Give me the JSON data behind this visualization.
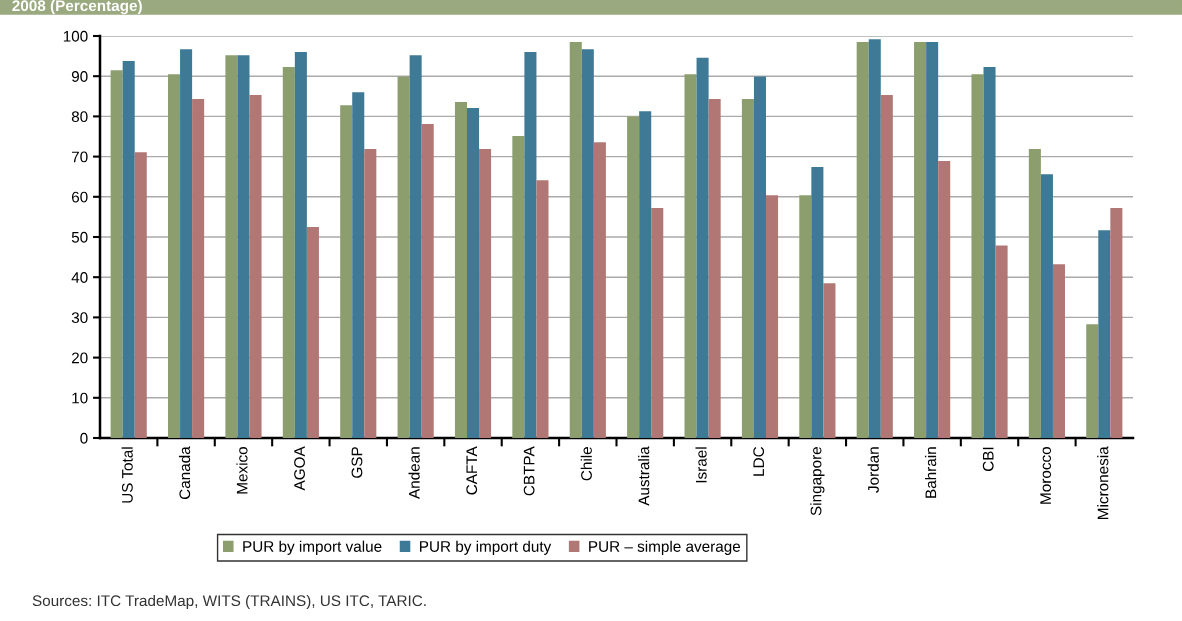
{
  "chart_data": {
    "type": "bar",
    "title": "2008 (Percentage)",
    "categories": [
      "US Total",
      "Canada",
      "Mexico",
      "AGOA",
      "GSP",
      "Andean",
      "CAFTA",
      "CBTPA",
      "Chile",
      "Australia",
      "Israel",
      "LDC",
      "Singapore",
      "Jordan",
      "Bahrain",
      "CBI",
      "Morocco",
      "Micronesia"
    ],
    "series": [
      {
        "name": "PUR by import value",
        "color": "#8c9e6e",
        "values": [
          91.5,
          90.5,
          95.2,
          92.3,
          82.8,
          89.9,
          83.6,
          75.1,
          98.5,
          80.0,
          90.5,
          84.3,
          60.4,
          98.5,
          98.5,
          90.5,
          71.9,
          28.3
        ]
      },
      {
        "name": "PUR by import duty",
        "color": "#3e7a96",
        "values": [
          93.8,
          96.7,
          95.2,
          96.0,
          86.0,
          95.2,
          82.1,
          96.0,
          96.7,
          81.3,
          94.6,
          89.9,
          67.4,
          99.2,
          98.5,
          92.3,
          65.6,
          51.7
        ]
      },
      {
        "name": "PUR – simple average",
        "color": "#b07775",
        "values": [
          71.1,
          84.3,
          85.3,
          52.5,
          71.9,
          78.1,
          71.9,
          64.1,
          73.6,
          57.2,
          84.3,
          60.4,
          38.5,
          85.3,
          68.9,
          47.9,
          43.2,
          57.2
        ]
      }
    ],
    "ylim": [
      0,
      100
    ],
    "yticks": [
      0,
      10,
      20,
      30,
      40,
      50,
      60,
      70,
      80,
      90,
      100
    ],
    "grid": "y",
    "legend": "bottom",
    "annotations": [
      "Sources: ITC TradeMap, WITS (TRAINS), US ITC, TARIC."
    ]
  }
}
